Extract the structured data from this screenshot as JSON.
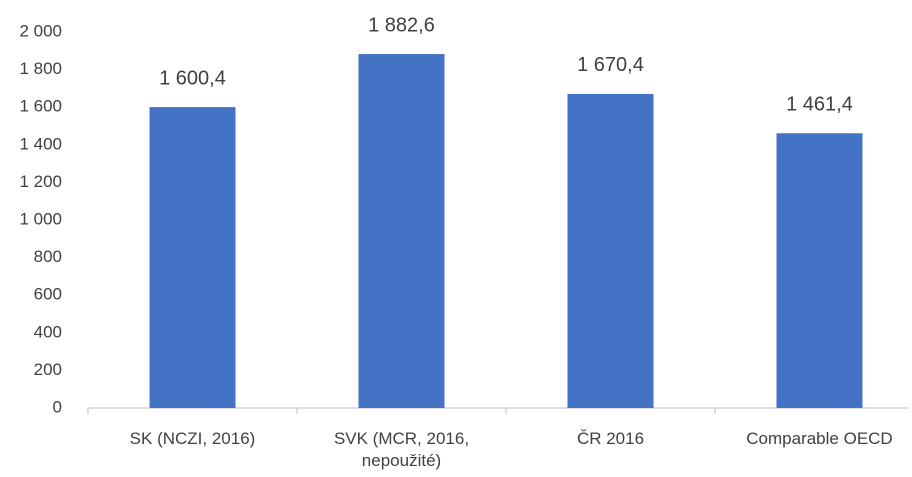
{
  "chart_data": {
    "type": "bar",
    "categories": [
      "SK (NCZI, 2016)",
      "SVK (MCR, 2016, nepoužité)",
      "ČR 2016",
      "Comparable OECD"
    ],
    "values": [
      1600.4,
      1882.6,
      1670.4,
      1461.4
    ],
    "value_labels": [
      "1 600,4",
      "1 882,6",
      "1 670,4",
      "1 461,4"
    ],
    "color": "#4472c4",
    "ylim": [
      0,
      2000
    ],
    "yticks": [
      0,
      200,
      400,
      600,
      800,
      {
        "value": 1000,
        "label": "1 000"
      },
      {
        "value": 1200,
        "label": "1 200"
      },
      {
        "value": 1400,
        "label": "1 400"
      },
      {
        "value": 1600,
        "label": "1 600"
      },
      {
        "value": 1800,
        "label": "1 800"
      },
      {
        "value": 2000,
        "label": "2 000"
      }
    ],
    "grid": false
  }
}
